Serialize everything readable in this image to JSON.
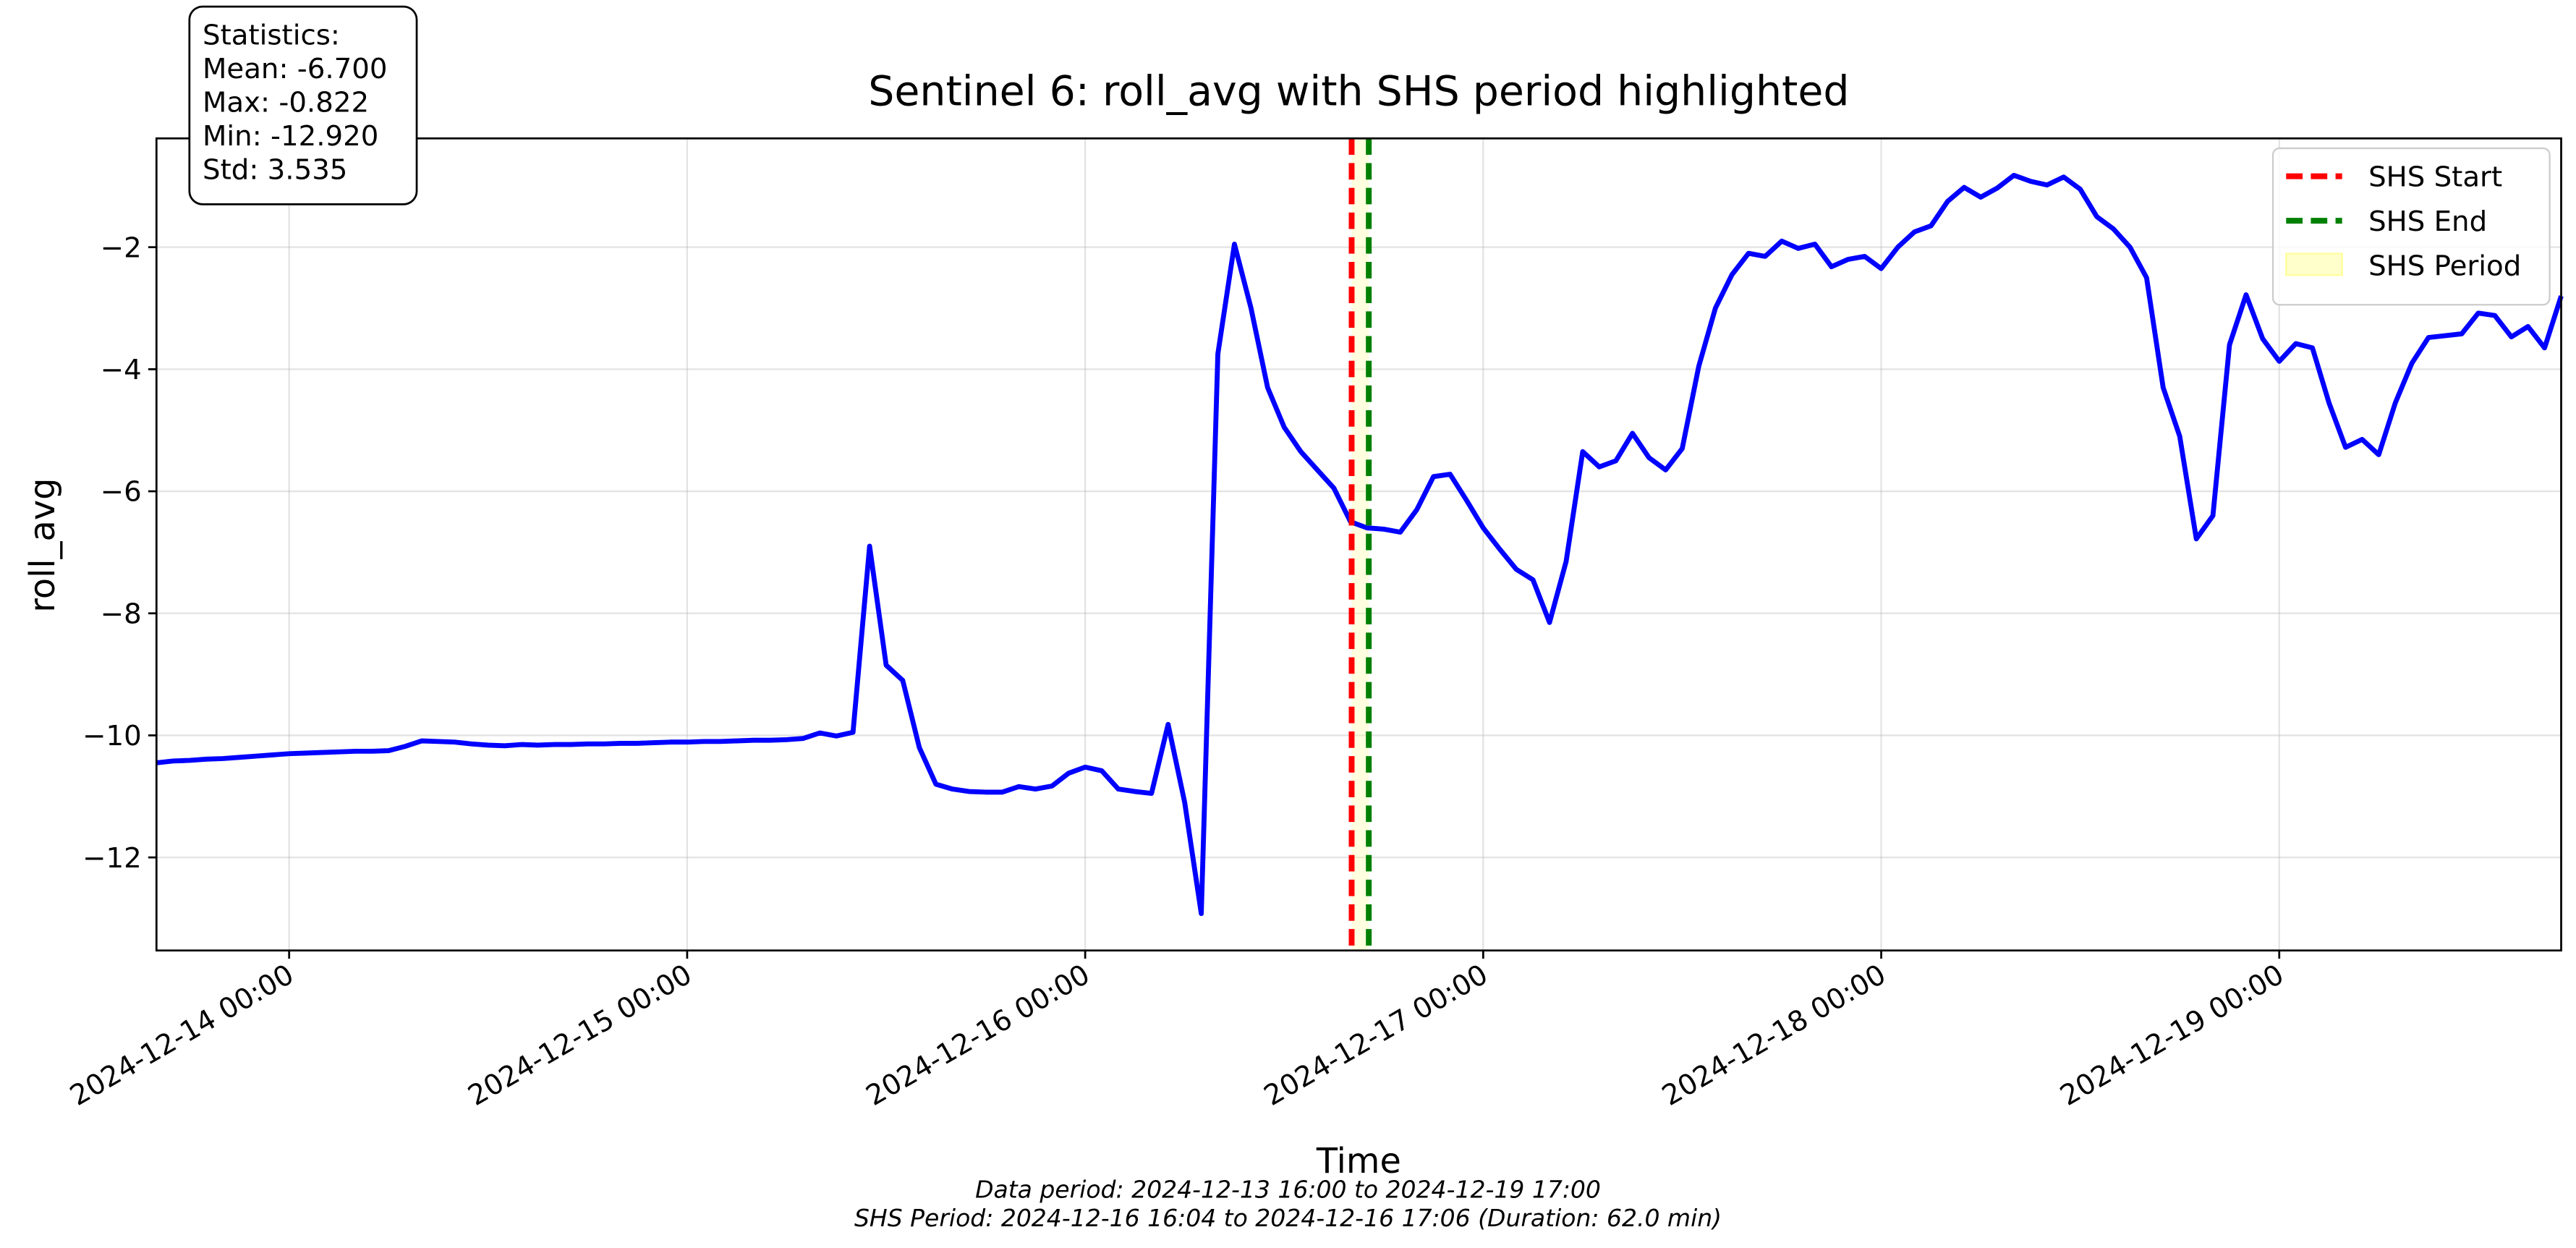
{
  "chart_data": {
    "type": "line",
    "title": "Sentinel 6: roll_avg with SHS period highlighted",
    "xlabel": "Time",
    "ylabel": "roll_avg",
    "x": [
      "2024-12-13 16:00",
      "2024-12-13 17:00",
      "2024-12-13 18:00",
      "2024-12-13 19:00",
      "2024-12-13 20:00",
      "2024-12-13 21:00",
      "2024-12-13 22:00",
      "2024-12-13 23:00",
      "2024-12-14 00:00",
      "2024-12-14 01:00",
      "2024-12-14 02:00",
      "2024-12-14 03:00",
      "2024-12-14 04:00",
      "2024-12-14 05:00",
      "2024-12-14 06:00",
      "2024-12-14 07:00",
      "2024-12-14 08:00",
      "2024-12-14 09:00",
      "2024-12-14 10:00",
      "2024-12-14 11:00",
      "2024-12-14 12:00",
      "2024-12-14 13:00",
      "2024-12-14 14:00",
      "2024-12-14 15:00",
      "2024-12-14 16:00",
      "2024-12-14 17:00",
      "2024-12-14 18:00",
      "2024-12-14 19:00",
      "2024-12-14 20:00",
      "2024-12-14 21:00",
      "2024-12-14 22:00",
      "2024-12-14 23:00",
      "2024-12-15 00:00",
      "2024-12-15 01:00",
      "2024-12-15 02:00",
      "2024-12-15 03:00",
      "2024-12-15 04:00",
      "2024-12-15 05:00",
      "2024-12-15 06:00",
      "2024-12-15 07:00",
      "2024-12-15 08:00",
      "2024-12-15 09:00",
      "2024-12-15 10:00",
      "2024-12-15 11:00",
      "2024-12-15 12:00",
      "2024-12-15 13:00",
      "2024-12-15 14:00",
      "2024-12-15 15:00",
      "2024-12-15 16:00",
      "2024-12-15 17:00",
      "2024-12-15 18:00",
      "2024-12-15 19:00",
      "2024-12-15 20:00",
      "2024-12-15 21:00",
      "2024-12-15 22:00",
      "2024-12-15 23:00",
      "2024-12-16 00:00",
      "2024-12-16 01:00",
      "2024-12-16 02:00",
      "2024-12-16 03:00",
      "2024-12-16 04:00",
      "2024-12-16 05:00",
      "2024-12-16 06:00",
      "2024-12-16 07:00",
      "2024-12-16 08:00",
      "2024-12-16 09:00",
      "2024-12-16 10:00",
      "2024-12-16 11:00",
      "2024-12-16 12:00",
      "2024-12-16 13:00",
      "2024-12-16 14:00",
      "2024-12-16 15:00",
      "2024-12-16 16:00",
      "2024-12-16 17:00",
      "2024-12-16 18:00",
      "2024-12-16 19:00",
      "2024-12-16 20:00",
      "2024-12-16 21:00",
      "2024-12-16 22:00",
      "2024-12-16 23:00",
      "2024-12-17 00:00",
      "2024-12-17 01:00",
      "2024-12-17 02:00",
      "2024-12-17 03:00",
      "2024-12-17 04:00",
      "2024-12-17 05:00",
      "2024-12-17 06:00",
      "2024-12-17 07:00",
      "2024-12-17 08:00",
      "2024-12-17 09:00",
      "2024-12-17 10:00",
      "2024-12-17 11:00",
      "2024-12-17 12:00",
      "2024-12-17 13:00",
      "2024-12-17 14:00",
      "2024-12-17 15:00",
      "2024-12-17 16:00",
      "2024-12-17 17:00",
      "2024-12-17 18:00",
      "2024-12-17 19:00",
      "2024-12-17 20:00",
      "2024-12-17 21:00",
      "2024-12-17 22:00",
      "2024-12-17 23:00",
      "2024-12-18 00:00",
      "2024-12-18 01:00",
      "2024-12-18 02:00",
      "2024-12-18 03:00",
      "2024-12-18 04:00",
      "2024-12-18 05:00",
      "2024-12-18 06:00",
      "2024-12-18 07:00",
      "2024-12-18 08:00",
      "2024-12-18 09:00",
      "2024-12-18 10:00",
      "2024-12-18 11:00",
      "2024-12-18 12:00",
      "2024-12-18 13:00",
      "2024-12-18 14:00",
      "2024-12-18 15:00",
      "2024-12-18 16:00",
      "2024-12-18 17:00",
      "2024-12-18 18:00",
      "2024-12-18 19:00",
      "2024-12-18 20:00",
      "2024-12-18 21:00",
      "2024-12-18 22:00",
      "2024-12-18 23:00",
      "2024-12-19 00:00",
      "2024-12-19 01:00",
      "2024-12-19 02:00",
      "2024-12-19 03:00",
      "2024-12-19 04:00",
      "2024-12-19 05:00",
      "2024-12-19 06:00",
      "2024-12-19 07:00",
      "2024-12-19 08:00",
      "2024-12-19 09:00",
      "2024-12-19 10:00",
      "2024-12-19 11:00",
      "2024-12-19 12:00",
      "2024-12-19 13:00",
      "2024-12-19 14:00",
      "2024-12-19 15:00",
      "2024-12-19 16:00",
      "2024-12-19 17:00"
    ],
    "series": [
      {
        "color": "#0000ff",
        "values": [
          -10.45,
          -10.42,
          -10.41,
          -10.39,
          -10.38,
          -10.36,
          -10.34,
          -10.32,
          -10.3,
          -10.29,
          -10.28,
          -10.27,
          -10.26,
          -10.26,
          -10.25,
          -10.18,
          -10.09,
          -10.1,
          -10.11,
          -10.14,
          -10.16,
          -10.17,
          -10.15,
          -10.16,
          -10.15,
          -10.15,
          -10.14,
          -10.14,
          -10.13,
          -10.13,
          -10.12,
          -10.11,
          -10.11,
          -10.1,
          -10.1,
          -10.09,
          -10.08,
          -10.08,
          -10.07,
          -10.05,
          -9.96,
          -10.01,
          -9.95,
          -6.9,
          -8.85,
          -9.1,
          -10.2,
          -10.8,
          -10.88,
          -10.92,
          -10.93,
          -10.93,
          -10.84,
          -10.88,
          -10.83,
          -10.62,
          -10.52,
          -10.58,
          -10.88,
          -10.92,
          -10.95,
          -9.82,
          -11.1,
          -12.92,
          -3.75,
          -1.95,
          -3.0,
          -4.3,
          -4.95,
          -5.35,
          -5.65,
          -5.95,
          -6.5,
          -6.6,
          -6.62,
          -6.67,
          -6.3,
          -5.76,
          -5.72,
          -6.15,
          -6.6,
          -6.95,
          -7.28,
          -7.45,
          -8.15,
          -7.15,
          -5.35,
          -5.6,
          -5.5,
          -5.05,
          -5.45,
          -5.65,
          -5.3,
          -3.95,
          -3.0,
          -2.45,
          -2.1,
          -2.15,
          -1.9,
          -2.02,
          -1.95,
          -2.32,
          -2.2,
          -2.15,
          -2.35,
          -2.0,
          -1.75,
          -1.65,
          -1.25,
          -1.02,
          -1.18,
          -1.03,
          -0.822,
          -0.92,
          -0.98,
          -0.85,
          -1.05,
          -1.5,
          -1.7,
          -2.0,
          -2.5,
          -4.3,
          -5.1,
          -6.78,
          -6.4,
          -3.6,
          -2.78,
          -3.5,
          -3.87,
          -3.58,
          -3.65,
          -4.55,
          -5.28,
          -5.15,
          -5.4,
          -4.55,
          -3.9,
          -3.48,
          -3.45,
          -3.42,
          -3.08,
          -3.12,
          -3.47,
          -3.3,
          -3.65,
          -2.8
        ]
      }
    ],
    "markers": [
      {
        "name": "SHS Start",
        "x": "2024-12-16 16:04",
        "color": "#ff0000"
      },
      {
        "name": "SHS End",
        "x": "2024-12-16 17:06",
        "color": "#008000"
      }
    ],
    "span": {
      "name": "SHS Period",
      "color": "#ffff99"
    },
    "xlim": [
      "2024-12-13 16:00",
      "2024-12-19 17:00"
    ],
    "xticks": [
      "2024-12-14 00:00",
      "2024-12-15 00:00",
      "2024-12-16 00:00",
      "2024-12-17 00:00",
      "2024-12-18 00:00",
      "2024-12-19 00:00"
    ],
    "ylim": [
      -13.525,
      -0.217
    ],
    "yticks": [
      {
        "value": -12,
        "label": "−12"
      },
      {
        "value": -10,
        "label": "−10"
      },
      {
        "value": -8,
        "label": "−8"
      },
      {
        "value": -6,
        "label": "−6"
      },
      {
        "value": -4,
        "label": "−4"
      },
      {
        "value": -2,
        "label": "−2"
      }
    ],
    "grid": true,
    "legend_loc": "upper right",
    "stats_box": [
      "Statistics:",
      "Mean: -6.700",
      "Max: -0.822",
      "Min: -12.920",
      "Std: 3.535"
    ],
    "footnotes": [
      "Data period: 2024-12-13 16:00 to 2024-12-19 17:00",
      "SHS Period: 2024-12-16 16:04 to 2024-12-16 17:06 (Duration: 62.0 min)"
    ]
  }
}
